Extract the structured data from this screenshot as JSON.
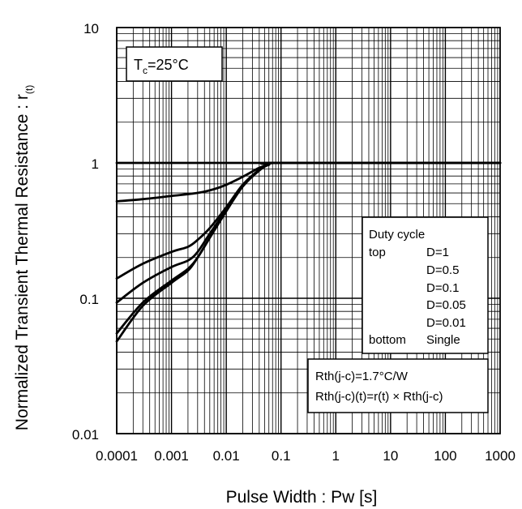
{
  "chart_data": {
    "type": "line",
    "title": "",
    "xlabel": "Pulse Width : Pw [s]",
    "ylabel": "Normalized Transient Thermal Resistance : r",
    "ylabel_subscript": "(t)",
    "x_scale": "log",
    "y_scale": "log",
    "xlim": [
      0.0001,
      1000
    ],
    "ylim": [
      0.01,
      10
    ],
    "x_ticks": [
      "0.0001",
      "0.001",
      "0.01",
      "0.1",
      "1",
      "10",
      "100",
      "1000"
    ],
    "y_ticks": [
      "0.01",
      "0.1",
      "1",
      "10"
    ],
    "grid": true,
    "condition": {
      "T": "T",
      "sub": "c",
      "value": "=25°C"
    },
    "legend": {
      "title": "Duty cycle",
      "top_label": "top",
      "bottom_label": "bottom",
      "entries": [
        "D=1",
        "D=0.5",
        "D=0.1",
        "D=0.05",
        "D=0.01",
        "Single"
      ]
    },
    "note": [
      "Rth(j-c)=1.7°C/W",
      "Rth(j-c)(t)=r(t) × Rth(j-c)"
    ],
    "series": [
      {
        "name": "D=1",
        "x": [
          0.0001,
          1000
        ],
        "y": [
          1,
          1
        ]
      },
      {
        "name": "D=0.5",
        "x": [
          0.0001,
          0.0003,
          0.001,
          0.003,
          0.006,
          0.01,
          0.02,
          0.04,
          0.06,
          0.1,
          1000
        ],
        "y": [
          0.52,
          0.54,
          0.57,
          0.6,
          0.64,
          0.69,
          0.79,
          0.92,
          0.97,
          1,
          1
        ]
      },
      {
        "name": "D=0.1",
        "x": [
          0.0001,
          0.0003,
          0.001,
          0.002,
          0.003,
          0.005,
          0.01,
          0.02,
          0.04,
          0.06,
          0.1,
          1000
        ],
        "y": [
          0.14,
          0.18,
          0.22,
          0.24,
          0.27,
          0.33,
          0.47,
          0.69,
          0.89,
          0.97,
          1,
          1
        ]
      },
      {
        "name": "D=0.05",
        "x": [
          0.0001,
          0.0003,
          0.001,
          0.002,
          0.003,
          0.005,
          0.01,
          0.02,
          0.04,
          0.06,
          0.1,
          1000
        ],
        "y": [
          0.093,
          0.13,
          0.17,
          0.19,
          0.22,
          0.3,
          0.45,
          0.68,
          0.89,
          0.97,
          1,
          1
        ]
      },
      {
        "name": "D=0.01",
        "x": [
          0.0001,
          0.0003,
          0.001,
          0.002,
          0.003,
          0.005,
          0.01,
          0.02,
          0.04,
          0.06,
          0.1,
          1000
        ],
        "y": [
          0.055,
          0.093,
          0.135,
          0.165,
          0.2,
          0.28,
          0.44,
          0.67,
          0.88,
          0.97,
          1,
          1
        ]
      },
      {
        "name": "Single",
        "x": [
          0.0001,
          0.0003,
          0.001,
          0.002,
          0.003,
          0.005,
          0.01,
          0.02,
          0.04,
          0.06,
          0.1,
          1000
        ],
        "y": [
          0.048,
          0.088,
          0.13,
          0.16,
          0.2,
          0.28,
          0.44,
          0.67,
          0.88,
          0.97,
          1,
          1
        ]
      }
    ],
    "colors": {
      "line": "#000000",
      "grid": "#000000",
      "background": "#ffffff"
    }
  }
}
